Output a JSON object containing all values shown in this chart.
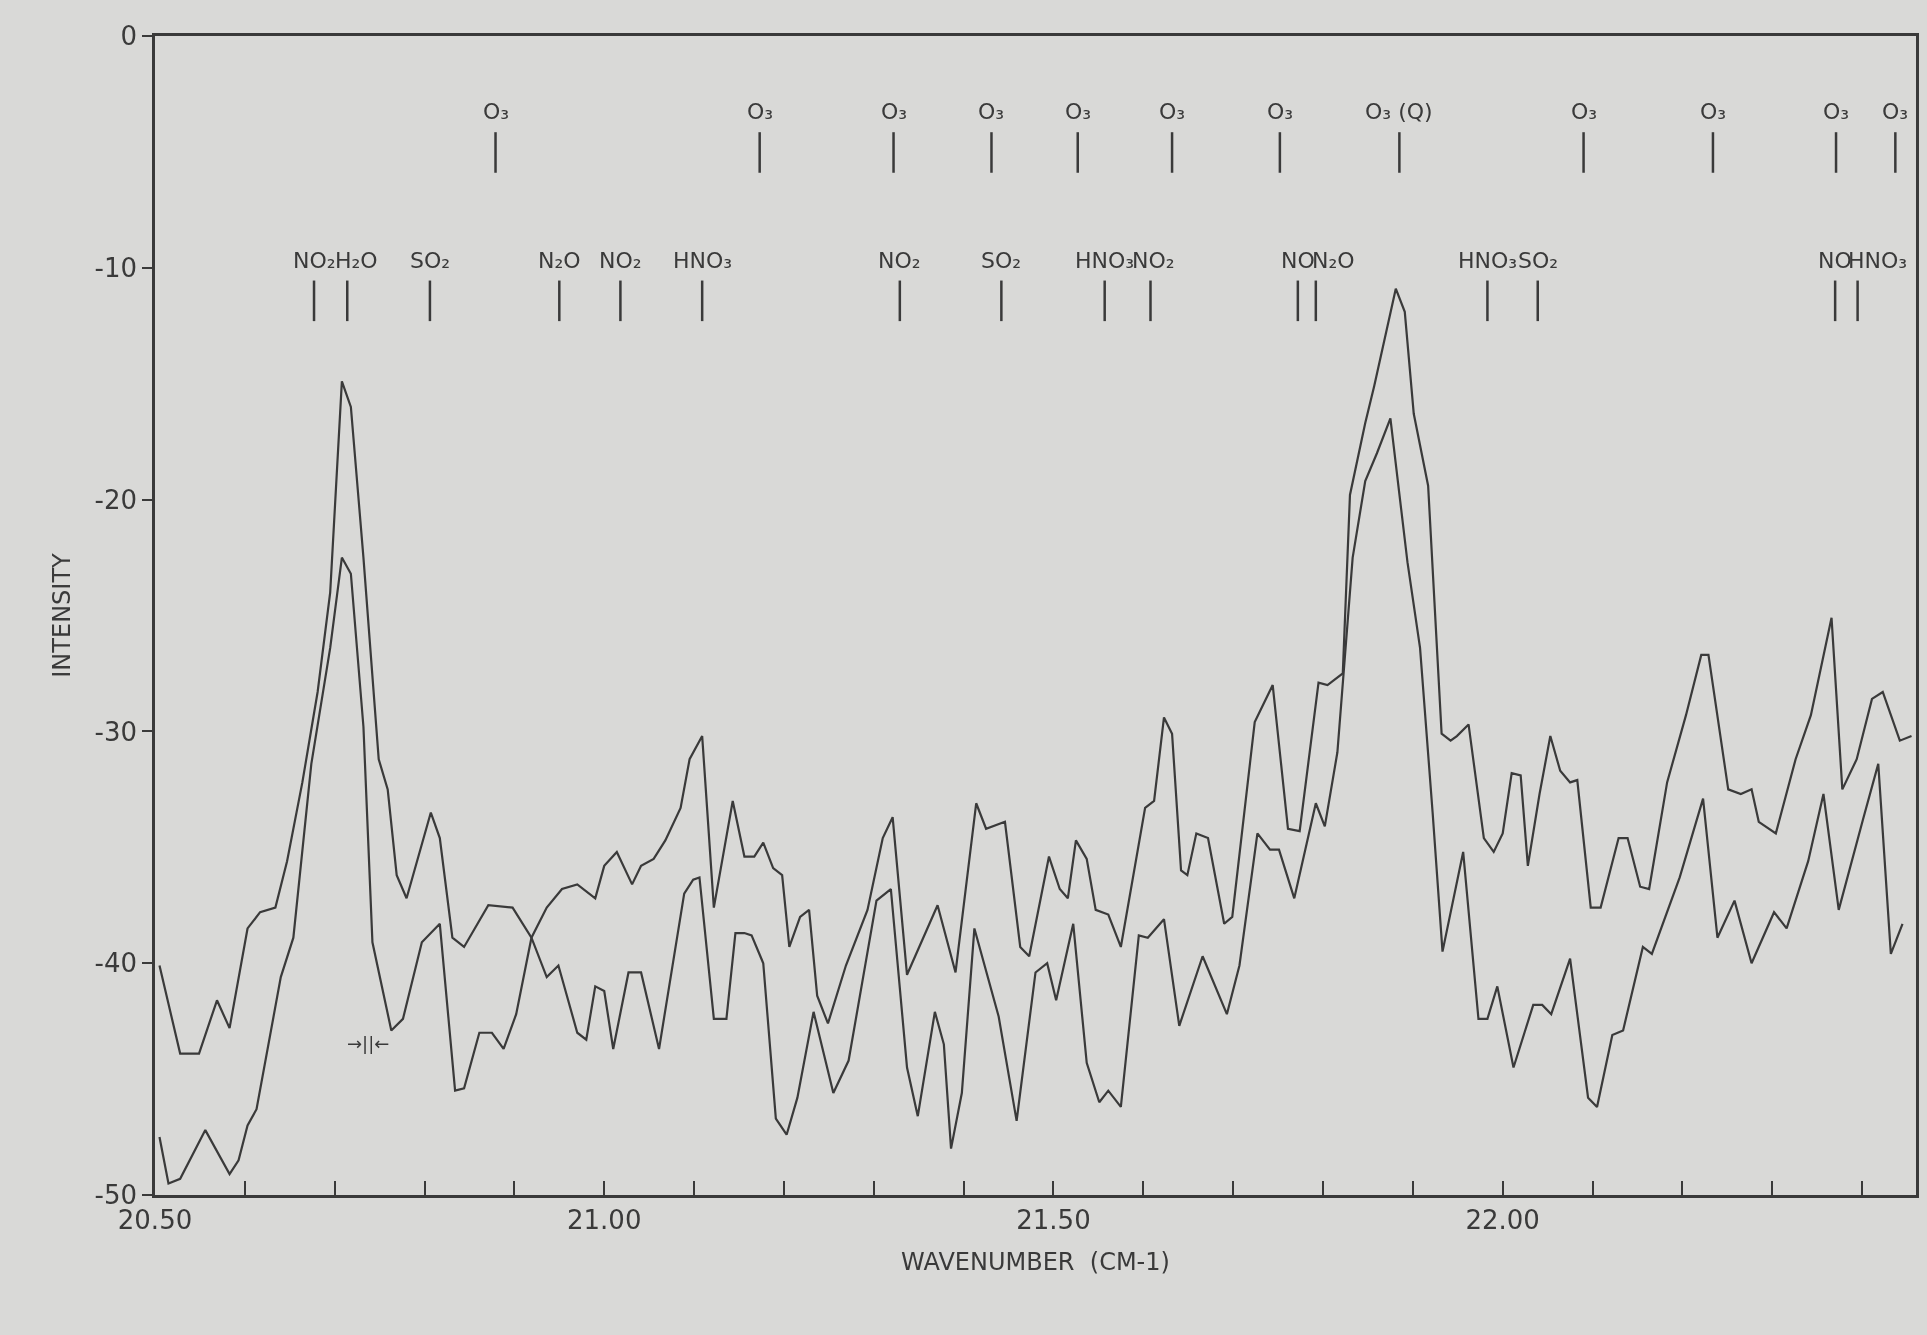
{
  "chart_data": {
    "type": "line",
    "xlabel": "WAVENUMBER  (CM-1)",
    "ylabel": "INTENSITY",
    "xlim": [
      20.5,
      22.46
    ],
    "ylim": [
      -50,
      0
    ],
    "xticks": [
      {
        "value": 20.5,
        "label": "20.50"
      },
      {
        "value": 20.6,
        "label": null
      },
      {
        "value": 20.7,
        "label": null
      },
      {
        "value": 20.8,
        "label": null
      },
      {
        "value": 20.9,
        "label": null
      },
      {
        "value": 21.0,
        "label": "21.00"
      },
      {
        "value": 21.1,
        "label": null
      },
      {
        "value": 21.2,
        "label": null
      },
      {
        "value": 21.3,
        "label": null
      },
      {
        "value": 21.4,
        "label": null
      },
      {
        "value": 21.5,
        "label": "21.50"
      },
      {
        "value": 21.6,
        "label": null
      },
      {
        "value": 21.7,
        "label": null
      },
      {
        "value": 21.8,
        "label": null
      },
      {
        "value": 21.9,
        "label": null
      },
      {
        "value": 22.0,
        "label": "22.00"
      },
      {
        "value": 22.1,
        "label": null
      },
      {
        "value": 22.2,
        "label": null
      },
      {
        "value": 22.3,
        "label": null
      },
      {
        "value": 22.4,
        "label": null
      }
    ],
    "yticks": [
      0,
      -10,
      -20,
      -30,
      -40,
      -50
    ],
    "grid": false,
    "marker": "none",
    "line_style": "solid",
    "series": [
      {
        "color": "#3a3a3a",
        "x": [
          20.505,
          20.528,
          20.549,
          20.569,
          20.583,
          20.603,
          20.617,
          20.634,
          20.647,
          20.664,
          20.681,
          20.695,
          20.708,
          20.718,
          20.732,
          20.749,
          20.759,
          20.769,
          20.78,
          20.807,
          20.817,
          20.831,
          20.844,
          20.871,
          20.898,
          20.919,
          20.936,
          20.949,
          20.97,
          20.98,
          20.99,
          21.0,
          21.01,
          21.027,
          21.041,
          21.061,
          21.089,
          21.099,
          21.106,
          21.122,
          21.136,
          21.146,
          21.156,
          21.164,
          21.177,
          21.191,
          21.203,
          21.215,
          21.233,
          21.255,
          21.272,
          21.303,
          21.319,
          21.337,
          21.349,
          21.368,
          21.378,
          21.386,
          21.398,
          21.412,
          21.439,
          21.459,
          21.48,
          21.493,
          21.503,
          21.522,
          21.537,
          21.551,
          21.561,
          21.575,
          21.595,
          21.605,
          21.623,
          21.64,
          21.666,
          21.693,
          21.707,
          21.727,
          21.741,
          21.751,
          21.768,
          21.792,
          21.802,
          21.816,
          21.833,
          21.847,
          21.86,
          21.875,
          21.894,
          21.908,
          21.922,
          21.933,
          21.956,
          21.973,
          21.983,
          21.994,
          22.012,
          22.034,
          22.044,
          22.054,
          22.075,
          22.095,
          22.105,
          22.122,
          22.134,
          22.156,
          22.166,
          22.197,
          22.223,
          22.239,
          22.258,
          22.277,
          22.302,
          22.316,
          22.34,
          22.357,
          22.374,
          22.401,
          22.418,
          22.432,
          22.445
        ],
        "values": [
          -40.1,
          -43.9,
          -43.9,
          -41.6,
          -42.8,
          -38.5,
          -37.8,
          -37.6,
          -35.6,
          -32.2,
          -28.3,
          -24.0,
          -14.9,
          -16.0,
          -22.5,
          -31.2,
          -32.5,
          -36.2,
          -37.2,
          -33.5,
          -34.6,
          -38.9,
          -39.3,
          -37.5,
          -37.6,
          -38.9,
          -40.6,
          -40.1,
          -43.0,
          -43.3,
          -41.0,
          -41.2,
          -43.7,
          -40.4,
          -40.4,
          -43.7,
          -37.0,
          -36.4,
          -36.3,
          -42.4,
          -42.4,
          -38.7,
          -38.7,
          -38.8,
          -40.0,
          -46.7,
          -47.4,
          -45.8,
          -42.1,
          -45.6,
          -44.2,
          -37.3,
          -36.8,
          -44.5,
          -46.6,
          -42.1,
          -43.5,
          -48.0,
          -45.6,
          -38.5,
          -42.3,
          -46.8,
          -40.4,
          -40.0,
          -41.6,
          -38.3,
          -44.3,
          -46.0,
          -45.5,
          -46.2,
          -38.8,
          -38.9,
          -38.1,
          -42.7,
          -39.7,
          -42.2,
          -40.1,
          -34.4,
          -35.1,
          -35.1,
          -37.2,
          -33.1,
          -34.1,
          -30.9,
          -22.5,
          -19.2,
          -18.0,
          -16.5,
          -22.7,
          -26.4,
          -33.5,
          -39.5,
          -35.2,
          -42.4,
          -42.4,
          -41.0,
          -44.5,
          -41.8,
          -41.8,
          -42.2,
          -39.8,
          -45.8,
          -46.2,
          -43.1,
          -42.9,
          -39.3,
          -39.6,
          -36.3,
          -32.9,
          -38.9,
          -37.3,
          -40.0,
          -37.8,
          -38.5,
          -35.6,
          -32.7,
          -37.7,
          -33.8,
          -31.4,
          -39.6,
          -38.3
        ]
      },
      {
        "color": "#3a3a3a",
        "x": [
          20.505,
          20.515,
          20.528,
          20.556,
          20.583,
          20.593,
          20.603,
          20.613,
          20.64,
          20.654,
          20.674,
          20.695,
          20.708,
          20.718,
          20.732,
          20.742,
          20.763,
          20.776,
          20.797,
          20.817,
          20.834,
          20.844,
          20.861,
          20.875,
          20.888,
          20.902,
          20.919,
          20.936,
          20.953,
          20.97,
          20.99,
          21.0,
          21.014,
          21.031,
          21.041,
          21.055,
          21.068,
          21.085,
          21.095,
          21.109,
          21.122,
          21.143,
          21.156,
          21.167,
          21.177,
          21.188,
          21.198,
          21.206,
          21.218,
          21.228,
          21.237,
          21.249,
          21.269,
          21.293,
          21.31,
          21.321,
          21.337,
          21.371,
          21.391,
          21.414,
          21.425,
          21.446,
          21.463,
          21.473,
          21.495,
          21.507,
          21.516,
          21.525,
          21.537,
          21.547,
          21.561,
          21.575,
          21.602,
          21.612,
          21.623,
          21.632,
          21.642,
          21.649,
          21.659,
          21.672,
          21.69,
          21.699,
          21.724,
          21.744,
          21.761,
          21.774,
          21.795,
          21.805,
          21.822,
          21.83,
          21.847,
          21.857,
          21.881,
          21.891,
          21.901,
          21.917,
          21.932,
          21.942,
          21.949,
          21.962,
          21.979,
          21.99,
          22.0,
          22.01,
          22.02,
          22.028,
          22.041,
          22.053,
          22.064,
          22.075,
          22.083,
          22.098,
          22.109,
          22.129,
          22.139,
          22.153,
          22.163,
          22.183,
          22.204,
          22.221,
          22.229,
          22.251,
          22.265,
          22.277,
          22.285,
          22.304,
          22.326,
          22.343,
          22.366,
          22.378,
          22.394,
          22.411,
          22.423,
          22.442,
          22.455
        ],
        "values": [
          -47.5,
          -49.5,
          -49.3,
          -47.2,
          -49.1,
          -48.5,
          -47.0,
          -46.3,
          -40.6,
          -38.9,
          -31.4,
          -26.4,
          -22.5,
          -23.2,
          -29.8,
          -39.1,
          -42.9,
          -42.4,
          -39.1,
          -38.3,
          -45.5,
          -45.4,
          -43.0,
          -43.0,
          -43.7,
          -42.2,
          -38.9,
          -37.6,
          -36.8,
          -36.6,
          -37.2,
          -35.8,
          -35.2,
          -36.6,
          -35.8,
          -35.5,
          -34.7,
          -33.3,
          -31.2,
          -30.2,
          -37.6,
          -33.0,
          -35.4,
          -35.4,
          -34.8,
          -35.9,
          -36.2,
          -39.3,
          -38.0,
          -37.7,
          -41.4,
          -42.6,
          -40.1,
          -37.7,
          -34.6,
          -33.7,
          -40.5,
          -37.5,
          -40.4,
          -33.1,
          -34.2,
          -33.9,
          -39.3,
          -39.7,
          -35.4,
          -36.8,
          -37.2,
          -34.7,
          -35.5,
          -37.7,
          -37.9,
          -39.3,
          -33.3,
          -33.0,
          -29.4,
          -30.1,
          -36.0,
          -36.2,
          -34.4,
          -34.6,
          -38.3,
          -38.0,
          -29.6,
          -28.0,
          -34.2,
          -34.3,
          -27.9,
          -28.0,
          -27.5,
          -19.8,
          -16.7,
          -15.1,
          -10.9,
          -11.9,
          -16.3,
          -19.4,
          -30.1,
          -30.4,
          -30.2,
          -29.7,
          -34.6,
          -35.2,
          -34.4,
          -31.8,
          -31.9,
          -35.8,
          -32.7,
          -30.2,
          -31.7,
          -32.2,
          -32.1,
          -37.6,
          -37.6,
          -34.6,
          -34.6,
          -36.7,
          -36.8,
          -32.2,
          -29.3,
          -26.7,
          -26.7,
          -32.5,
          -32.7,
          -32.5,
          -33.9,
          -34.4,
          -31.2,
          -29.3,
          -25.1,
          -32.5,
          -31.2,
          -28.6,
          -28.3,
          -30.4,
          -30.2
        ]
      }
    ],
    "ref_lines": [
      {
        "axis": "x",
        "value": 20.879,
        "label": "O₃"
      },
      {
        "axis": "x",
        "value": 21.173,
        "label": "O₃"
      },
      {
        "axis": "x",
        "value": 21.322,
        "label": "O₃"
      },
      {
        "axis": "x",
        "value": 21.431,
        "label": "O₃"
      },
      {
        "axis": "x",
        "value": 21.527,
        "label": "O₃"
      },
      {
        "axis": "x",
        "value": 21.632,
        "label": "O₃"
      },
      {
        "axis": "x",
        "value": 21.752,
        "label": "O₃"
      },
      {
        "axis": "x",
        "value": 21.885,
        "label": "O₃ (Q)"
      },
      {
        "axis": "x",
        "value": 22.09,
        "label": "O₃"
      },
      {
        "axis": "x",
        "value": 22.234,
        "label": "O₃"
      },
      {
        "axis": "x",
        "value": 22.371,
        "label": "O₃"
      },
      {
        "axis": "x",
        "value": 22.437,
        "label": "O₃"
      },
      {
        "axis": "x",
        "value": 20.677,
        "label": "NO₂"
      },
      {
        "axis": "x",
        "value": 20.714,
        "label": "H₂O"
      },
      {
        "axis": "x",
        "value": 20.806,
        "label": "SO₂"
      },
      {
        "axis": "x",
        "value": 20.95,
        "label": "N₂O"
      },
      {
        "axis": "x",
        "value": 21.018,
        "label": "NO₂"
      },
      {
        "axis": "x",
        "value": 21.109,
        "label": "HNO₃"
      },
      {
        "axis": "x",
        "value": 21.329,
        "label": "NO₂"
      },
      {
        "axis": "x",
        "value": 21.442,
        "label": "SO₂"
      },
      {
        "axis": "x",
        "value": 21.557,
        "label": "HNO₃"
      },
      {
        "axis": "x",
        "value": 21.608,
        "label": "NO₂"
      },
      {
        "axis": "x",
        "value": 21.772,
        "label": "NO"
      },
      {
        "axis": "x",
        "value": 21.792,
        "label": "N₂O"
      },
      {
        "axis": "x",
        "value": 21.983,
        "label": "HNO₃"
      },
      {
        "axis": "x",
        "value": 22.039,
        "label": "SO₂"
      },
      {
        "axis": "x",
        "value": 22.37,
        "label": "NO"
      },
      {
        "axis": "x",
        "value": 22.395,
        "label": "HNO₃"
      }
    ],
    "annotations": [
      "→||←"
    ]
  }
}
